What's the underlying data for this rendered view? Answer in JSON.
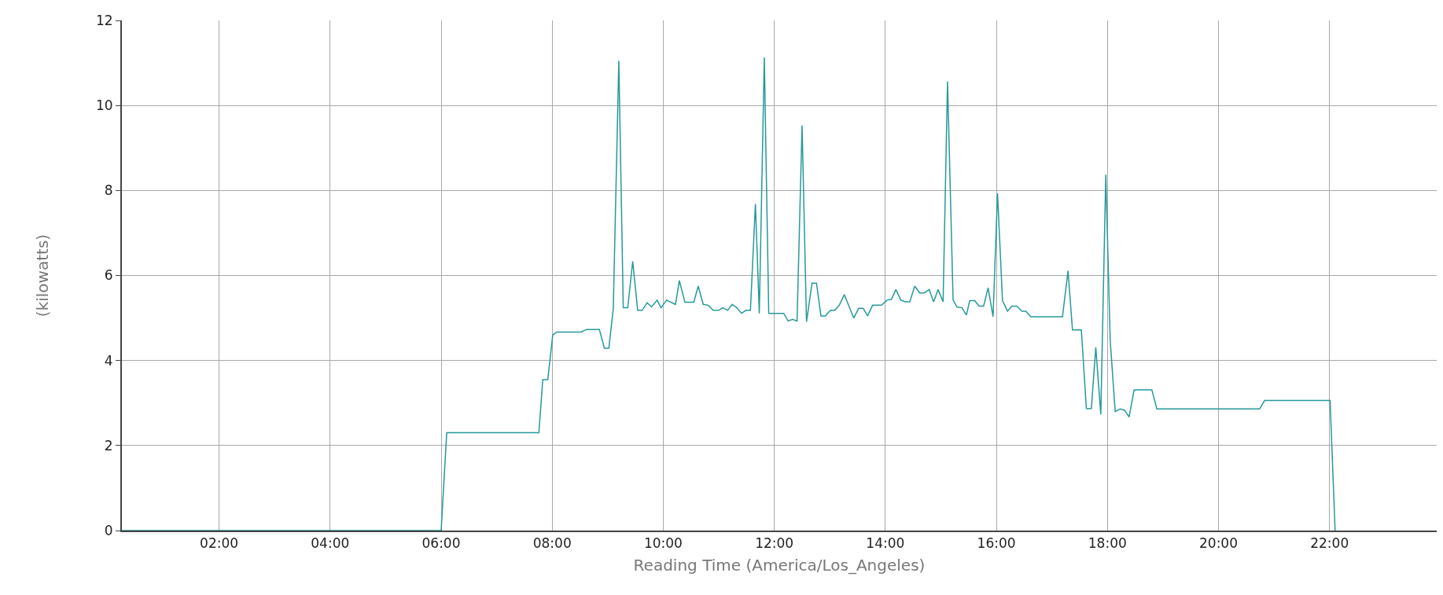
{
  "chart_data": {
    "type": "line",
    "xlabel": "Reading Time (America/Los_Angeles)",
    "ylabel": "(kilowatts)",
    "xlim": [
      0.25,
      23.93
    ],
    "ylim": [
      0,
      12
    ],
    "xticks": [
      {
        "value": 2,
        "label": "02:00"
      },
      {
        "value": 4,
        "label": "04:00"
      },
      {
        "value": 6,
        "label": "06:00"
      },
      {
        "value": 8,
        "label": "08:00"
      },
      {
        "value": 10,
        "label": "10:00"
      },
      {
        "value": 12,
        "label": "12:00"
      },
      {
        "value": 14,
        "label": "14:00"
      },
      {
        "value": 16,
        "label": "16:00"
      },
      {
        "value": 18,
        "label": "18:00"
      },
      {
        "value": 20,
        "label": "20:00"
      },
      {
        "value": 22,
        "label": "22:00"
      }
    ],
    "yticks": [
      0,
      2,
      4,
      6,
      8,
      10,
      12
    ],
    "grid": true,
    "marker": "none",
    "line_style": "solid",
    "series": [
      {
        "color": "#26999a",
        "x": [
          0.25,
          6.0,
          6.1,
          7.76,
          7.83,
          7.92,
          8.01,
          8.08,
          8.52,
          8.62,
          8.85,
          8.94,
          9.02,
          9.1,
          9.2,
          9.28,
          9.36,
          9.45,
          9.54,
          9.62,
          9.71,
          9.79,
          9.89,
          9.96,
          10.06,
          10.22,
          10.29,
          10.39,
          10.55,
          10.63,
          10.72,
          10.81,
          10.9,
          11.0,
          11.07,
          11.16,
          11.24,
          11.31,
          11.41,
          11.49,
          11.57,
          11.66,
          11.73,
          11.82,
          11.9,
          12.17,
          12.25,
          12.33,
          12.41,
          12.5,
          12.58,
          12.68,
          12.76,
          12.84,
          12.92,
          13.01,
          13.09,
          13.17,
          13.26,
          13.43,
          13.52,
          13.6,
          13.68,
          13.77,
          13.93,
          14.03,
          14.11,
          14.19,
          14.28,
          14.36,
          14.44,
          14.53,
          14.62,
          14.7,
          14.79,
          14.87,
          14.95,
          15.04,
          15.12,
          15.22,
          15.29,
          15.38,
          15.46,
          15.52,
          15.61,
          15.69,
          15.77,
          15.85,
          15.94,
          16.02,
          16.11,
          16.2,
          16.28,
          16.37,
          16.46,
          16.53,
          16.62,
          17.19,
          17.29,
          17.37,
          17.53,
          17.62,
          17.71,
          17.79,
          17.88,
          17.97,
          18.05,
          18.14,
          18.23,
          18.31,
          18.39,
          18.48,
          18.8,
          18.89,
          20.74,
          20.83,
          22.01,
          22.1
        ],
        "values": [
          0,
          0,
          2.3,
          2.3,
          3.55,
          3.55,
          4.6,
          4.67,
          4.67,
          4.73,
          4.73,
          4.29,
          4.29,
          5.22,
          11.05,
          5.24,
          5.24,
          6.33,
          5.18,
          5.18,
          5.36,
          5.26,
          5.42,
          5.24,
          5.42,
          5.32,
          5.88,
          5.37,
          5.37,
          5.75,
          5.32,
          5.3,
          5.18,
          5.18,
          5.24,
          5.18,
          5.32,
          5.26,
          5.11,
          5.18,
          5.18,
          7.68,
          5.11,
          11.13,
          5.11,
          5.11,
          4.93,
          4.97,
          4.93,
          9.53,
          4.91,
          5.82,
          5.82,
          5.05,
          5.05,
          5.18,
          5.18,
          5.3,
          5.55,
          5.0,
          5.23,
          5.23,
          5.05,
          5.3,
          5.3,
          5.42,
          5.44,
          5.67,
          5.42,
          5.38,
          5.38,
          5.75,
          5.59,
          5.59,
          5.67,
          5.38,
          5.67,
          5.38,
          10.56,
          5.42,
          5.26,
          5.24,
          5.07,
          5.41,
          5.41,
          5.28,
          5.28,
          5.71,
          5.03,
          7.93,
          5.41,
          5.16,
          5.28,
          5.28,
          5.16,
          5.16,
          5.03,
          5.03,
          6.11,
          4.72,
          4.72,
          2.87,
          2.87,
          4.31,
          2.73,
          8.37,
          4.46,
          2.8,
          2.86,
          2.83,
          2.67,
          3.31,
          3.31,
          2.86,
          2.86,
          3.06,
          3.06,
          0
        ]
      }
    ]
  }
}
